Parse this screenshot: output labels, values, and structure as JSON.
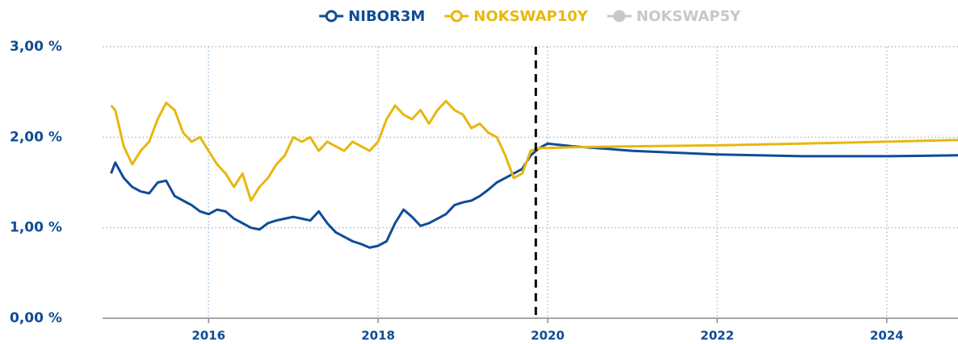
{
  "chart_data": {
    "type": "line",
    "x": [
      2014.85,
      2014.9,
      2015.0,
      2015.1,
      2015.2,
      2015.3,
      2015.4,
      2015.5,
      2015.6,
      2015.7,
      2015.8,
      2015.9,
      2016.0,
      2016.1,
      2016.2,
      2016.3,
      2016.4,
      2016.5,
      2016.6,
      2016.7,
      2016.8,
      2016.9,
      2017.0,
      2017.1,
      2017.2,
      2017.3,
      2017.4,
      2017.5,
      2017.6,
      2017.7,
      2017.8,
      2017.9,
      2018.0,
      2018.1,
      2018.2,
      2018.3,
      2018.4,
      2018.5,
      2018.6,
      2018.7,
      2018.8,
      2018.9,
      2019.0,
      2019.1,
      2019.2,
      2019.3,
      2019.4,
      2019.5,
      2019.6,
      2019.7,
      2019.8,
      2019.9,
      2020.0,
      2020.3,
      2021.0,
      2022.0,
      2023.0,
      2024.0,
      2024.84
    ],
    "series": [
      {
        "name": "NIBOR3M",
        "color": "#0f4c96",
        "values": [
          1.6,
          1.72,
          1.55,
          1.45,
          1.4,
          1.38,
          1.5,
          1.52,
          1.35,
          1.3,
          1.25,
          1.18,
          1.15,
          1.2,
          1.18,
          1.1,
          1.05,
          1.0,
          0.98,
          1.05,
          1.08,
          1.1,
          1.12,
          1.1,
          1.08,
          1.18,
          1.05,
          0.95,
          0.9,
          0.85,
          0.82,
          0.78,
          0.8,
          0.85,
          1.05,
          1.2,
          1.12,
          1.02,
          1.05,
          1.1,
          1.15,
          1.25,
          1.28,
          1.3,
          1.35,
          1.42,
          1.5,
          1.55,
          1.6,
          1.65,
          1.8,
          1.88,
          1.93,
          1.9,
          1.85,
          1.81,
          1.79,
          1.79,
          1.8
        ]
      },
      {
        "name": "NOKSWAP10Y",
        "color": "#e8b70f",
        "values": [
          2.35,
          2.3,
          1.9,
          1.7,
          1.85,
          1.95,
          2.2,
          2.38,
          2.3,
          2.05,
          1.95,
          2.0,
          1.85,
          1.7,
          1.6,
          1.45,
          1.6,
          1.3,
          1.45,
          1.55,
          1.7,
          1.8,
          2.0,
          1.95,
          2.0,
          1.85,
          1.95,
          1.9,
          1.85,
          1.95,
          1.9,
          1.85,
          1.95,
          2.2,
          2.35,
          2.25,
          2.2,
          2.3,
          2.15,
          2.3,
          2.4,
          2.3,
          2.25,
          2.1,
          2.15,
          2.05,
          2.0,
          1.8,
          1.55,
          1.6,
          1.85,
          1.88,
          1.88,
          1.89,
          1.9,
          1.91,
          1.93,
          1.95,
          1.97
        ]
      }
    ],
    "hidden_series": [
      {
        "name": "NOKSWAP5Y",
        "color": "#c8c8c8"
      }
    ],
    "vline": 2019.86,
    "xlim": [
      2014.75,
      2024.84
    ],
    "xticks": [
      2016,
      2018,
      2020,
      2022,
      2024
    ],
    "ylim": [
      0,
      3
    ],
    "yticks": [
      {
        "value": 0,
        "label": "0,00 %"
      },
      {
        "value": 1,
        "label": "1,00 %"
      },
      {
        "value": 2,
        "label": "2,00 %"
      },
      {
        "value": 3,
        "label": "3,00 %"
      }
    ],
    "grid": true
  }
}
